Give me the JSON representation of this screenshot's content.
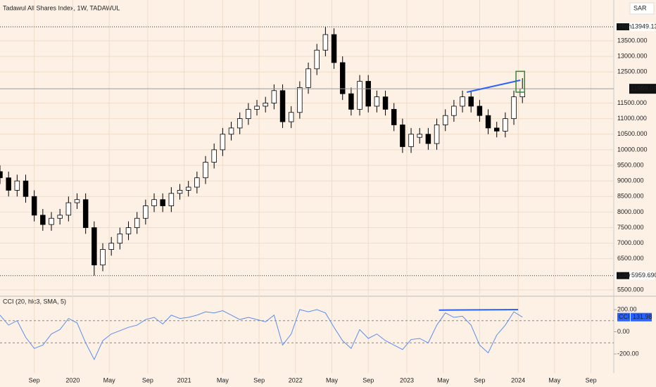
{
  "chart_data": [
    {
      "type": "candlestick",
      "title": "Tadawul All Shares Index, 1W, TADAWUL",
      "currency": "SAR",
      "x": [
        0,
        4,
        8,
        12,
        16,
        20,
        24,
        28,
        32,
        36,
        40,
        44,
        48,
        52,
        56,
        60,
        64,
        68,
        72,
        76,
        80,
        84,
        88,
        92,
        96,
        100,
        104,
        108,
        112,
        116,
        120,
        124,
        128,
        132,
        136,
        140,
        144,
        148,
        152,
        156,
        160,
        164,
        168,
        172,
        176,
        180,
        184,
        188,
        192,
        196,
        200,
        204,
        208,
        212,
        216,
        220,
        224,
        228,
        232,
        236,
        240,
        244
      ],
      "open": [
        9300,
        9100,
        8700,
        9000,
        8500,
        7900,
        7600,
        7800,
        7900,
        8300,
        8400,
        7500,
        6300,
        6800,
        7000,
        7300,
        7500,
        7800,
        8200,
        8400,
        8200,
        8600,
        8700,
        8800,
        9100,
        9600,
        10000,
        10500,
        10700,
        11000,
        11300,
        11400,
        11500,
        11900,
        10900,
        11200,
        12000,
        12600,
        13200,
        13700,
        12800,
        11800,
        11300,
        12200,
        11400,
        11700,
        11300,
        10800,
        10100,
        10400,
        10500,
        10200,
        10800,
        11100,
        11400,
        11700,
        11400,
        11100,
        10700,
        10600,
        11000,
        11700
      ],
      "high": [
        9500,
        9300,
        9200,
        9200,
        8700,
        8100,
        8000,
        8100,
        8500,
        8600,
        8600,
        7700,
        7000,
        7200,
        7500,
        7700,
        8000,
        8400,
        8600,
        8600,
        8800,
        8900,
        9000,
        9300,
        9800,
        10200,
        10700,
        10900,
        11200,
        11500,
        11600,
        11700,
        12100,
        12100,
        11400,
        12200,
        12800,
        13400,
        13949.13,
        13900,
        13000,
        12000,
        12400,
        12400,
        11900,
        11900,
        11500,
        11000,
        10700,
        10700,
        10700,
        11000,
        11300,
        11600,
        11900,
        11900,
        11600,
        11300,
        10900,
        11200,
        11900,
        12300
      ],
      "low": [
        8900,
        8500,
        8500,
        8300,
        7700,
        7400,
        7400,
        7600,
        7700,
        8100,
        7300,
        5959.69,
        6100,
        6600,
        6800,
        7100,
        7300,
        7600,
        8000,
        8000,
        8000,
        8400,
        8500,
        8600,
        8900,
        9400,
        9800,
        10300,
        10500,
        10800,
        11100,
        11200,
        11300,
        10700,
        10700,
        11000,
        11800,
        12400,
        13000,
        12600,
        11600,
        11100,
        11100,
        11200,
        11200,
        11100,
        10600,
        9900,
        9900,
        10200,
        10000,
        10000,
        10600,
        10900,
        11200,
        11200,
        10900,
        10500,
        10400,
        10400,
        10800,
        11500
      ],
      "close": [
        9100,
        8700,
        9000,
        8500,
        7900,
        7600,
        7800,
        7900,
        8300,
        8400,
        7500,
        6300,
        6800,
        7000,
        7300,
        7500,
        7800,
        8200,
        8400,
        8200,
        8600,
        8700,
        8800,
        9100,
        9600,
        10000,
        10500,
        10700,
        11000,
        11300,
        11400,
        11500,
        11900,
        10900,
        11200,
        12000,
        12600,
        13200,
        13700,
        12800,
        11800,
        11300,
        12200,
        11400,
        11700,
        11300,
        10800,
        10100,
        10500,
        10500,
        10200,
        10800,
        11100,
        11400,
        11700,
        11400,
        11100,
        10700,
        10600,
        11000,
        11700,
        11959.07
      ],
      "up_color": "#ffffff",
      "down_color": "#000000",
      "xlim": [
        0,
        286
      ],
      "xticks": [
        {
          "value": 16,
          "label": "Sep"
        },
        {
          "value": 34,
          "label": "2020"
        },
        {
          "value": 51,
          "label": "May"
        },
        {
          "value": 69,
          "label": "Sep"
        },
        {
          "value": 86,
          "label": "2021"
        },
        {
          "value": 104,
          "label": "May"
        },
        {
          "value": 121,
          "label": "Sep"
        },
        {
          "value": 138,
          "label": "2022"
        },
        {
          "value": 155,
          "label": "May"
        },
        {
          "value": 172,
          "label": "Sep"
        },
        {
          "value": 190,
          "label": "2023"
        },
        {
          "value": 207,
          "label": "May"
        },
        {
          "value": 224,
          "label": "Sep"
        },
        {
          "value": 242,
          "label": "2024"
        },
        {
          "value": 259,
          "label": "May"
        },
        {
          "value": 276,
          "label": "Sep"
        }
      ],
      "ylim": [
        5320,
        14810
      ],
      "yticks": [
        {
          "value": 5500,
          "label": "5500.000"
        },
        {
          "value": 6500,
          "label": "6500.000"
        },
        {
          "value": 7000,
          "label": "7000.000"
        },
        {
          "value": 7500,
          "label": "7500.000"
        },
        {
          "value": 8000,
          "label": "8000.000"
        },
        {
          "value": 8500,
          "label": "8500.000"
        },
        {
          "value": 9000,
          "label": "9000.000"
        },
        {
          "value": 9500,
          "label": "9500.000"
        },
        {
          "value": 10000,
          "label": "10000.000"
        },
        {
          "value": 10500,
          "label": "10500.000"
        },
        {
          "value": 11000,
          "label": "11000.000"
        },
        {
          "value": 11500,
          "label": "11500.000"
        },
        {
          "value": 12500,
          "label": "12500.000"
        },
        {
          "value": 13000,
          "label": "13000.000"
        },
        {
          "value": 13500,
          "label": "13500.000"
        }
      ],
      "high_marker": {
        "name": "High",
        "value": 13949.13,
        "label": "13949.130"
      },
      "low_marker": {
        "name": "Low",
        "value": 5959.69,
        "label": "5959.690"
      },
      "last_marker": {
        "value": 11959.07,
        "label": "11959.070"
      },
      "trendline": {
        "x": [
          218,
          243
        ],
        "y": [
          11850,
          12234
        ],
        "color": "#2962ff"
      },
      "highlight": {
        "x": [
          241,
          245
        ],
        "y": [
          11850,
          12520
        ],
        "color": "#2e8b2e"
      },
      "grid": true
    },
    {
      "type": "line",
      "title": "CCI (20, hlc3, SMA, 5)",
      "x": [
        0,
        4,
        8,
        12,
        16,
        20,
        24,
        28,
        32,
        36,
        40,
        44,
        48,
        52,
        56,
        60,
        64,
        68,
        72,
        76,
        80,
        84,
        88,
        92,
        96,
        100,
        104,
        108,
        112,
        116,
        120,
        124,
        128,
        132,
        136,
        140,
        144,
        148,
        152,
        156,
        160,
        164,
        168,
        172,
        176,
        180,
        184,
        188,
        192,
        196,
        200,
        204,
        208,
        212,
        216,
        220,
        224,
        228,
        232,
        236,
        240,
        244
      ],
      "series": [
        {
          "name": "CCI",
          "color": "#5b8def",
          "values": [
            150,
            60,
            100,
            -50,
            -150,
            -120,
            -20,
            20,
            120,
            80,
            -100,
            -250,
            -80,
            -20,
            10,
            40,
            60,
            110,
            130,
            70,
            150,
            120,
            130,
            150,
            180,
            170,
            190,
            150,
            110,
            130,
            110,
            90,
            150,
            -120,
            -20,
            200,
            180,
            200,
            170,
            40,
            -80,
            -150,
            20,
            -60,
            -20,
            -80,
            -120,
            -160,
            -70,
            -60,
            -100,
            60,
            170,
            130,
            140,
            60,
            -120,
            -190,
            -30,
            60,
            180,
            131.98
          ]
        }
      ],
      "last_label": "131.98",
      "bands": [
        100,
        -100
      ],
      "trendline": {
        "x": [
          205,
          242
        ],
        "y": [
          195,
          200
        ],
        "color": "#2962ff"
      },
      "xlim": [
        0,
        286
      ],
      "ylim": [
        -371,
        314
      ],
      "yticks": [
        {
          "value": 200,
          "label": "200.00"
        },
        {
          "value": 0,
          "label": "0.00"
        },
        {
          "value": -200,
          "label": "-200.00"
        }
      ]
    }
  ]
}
